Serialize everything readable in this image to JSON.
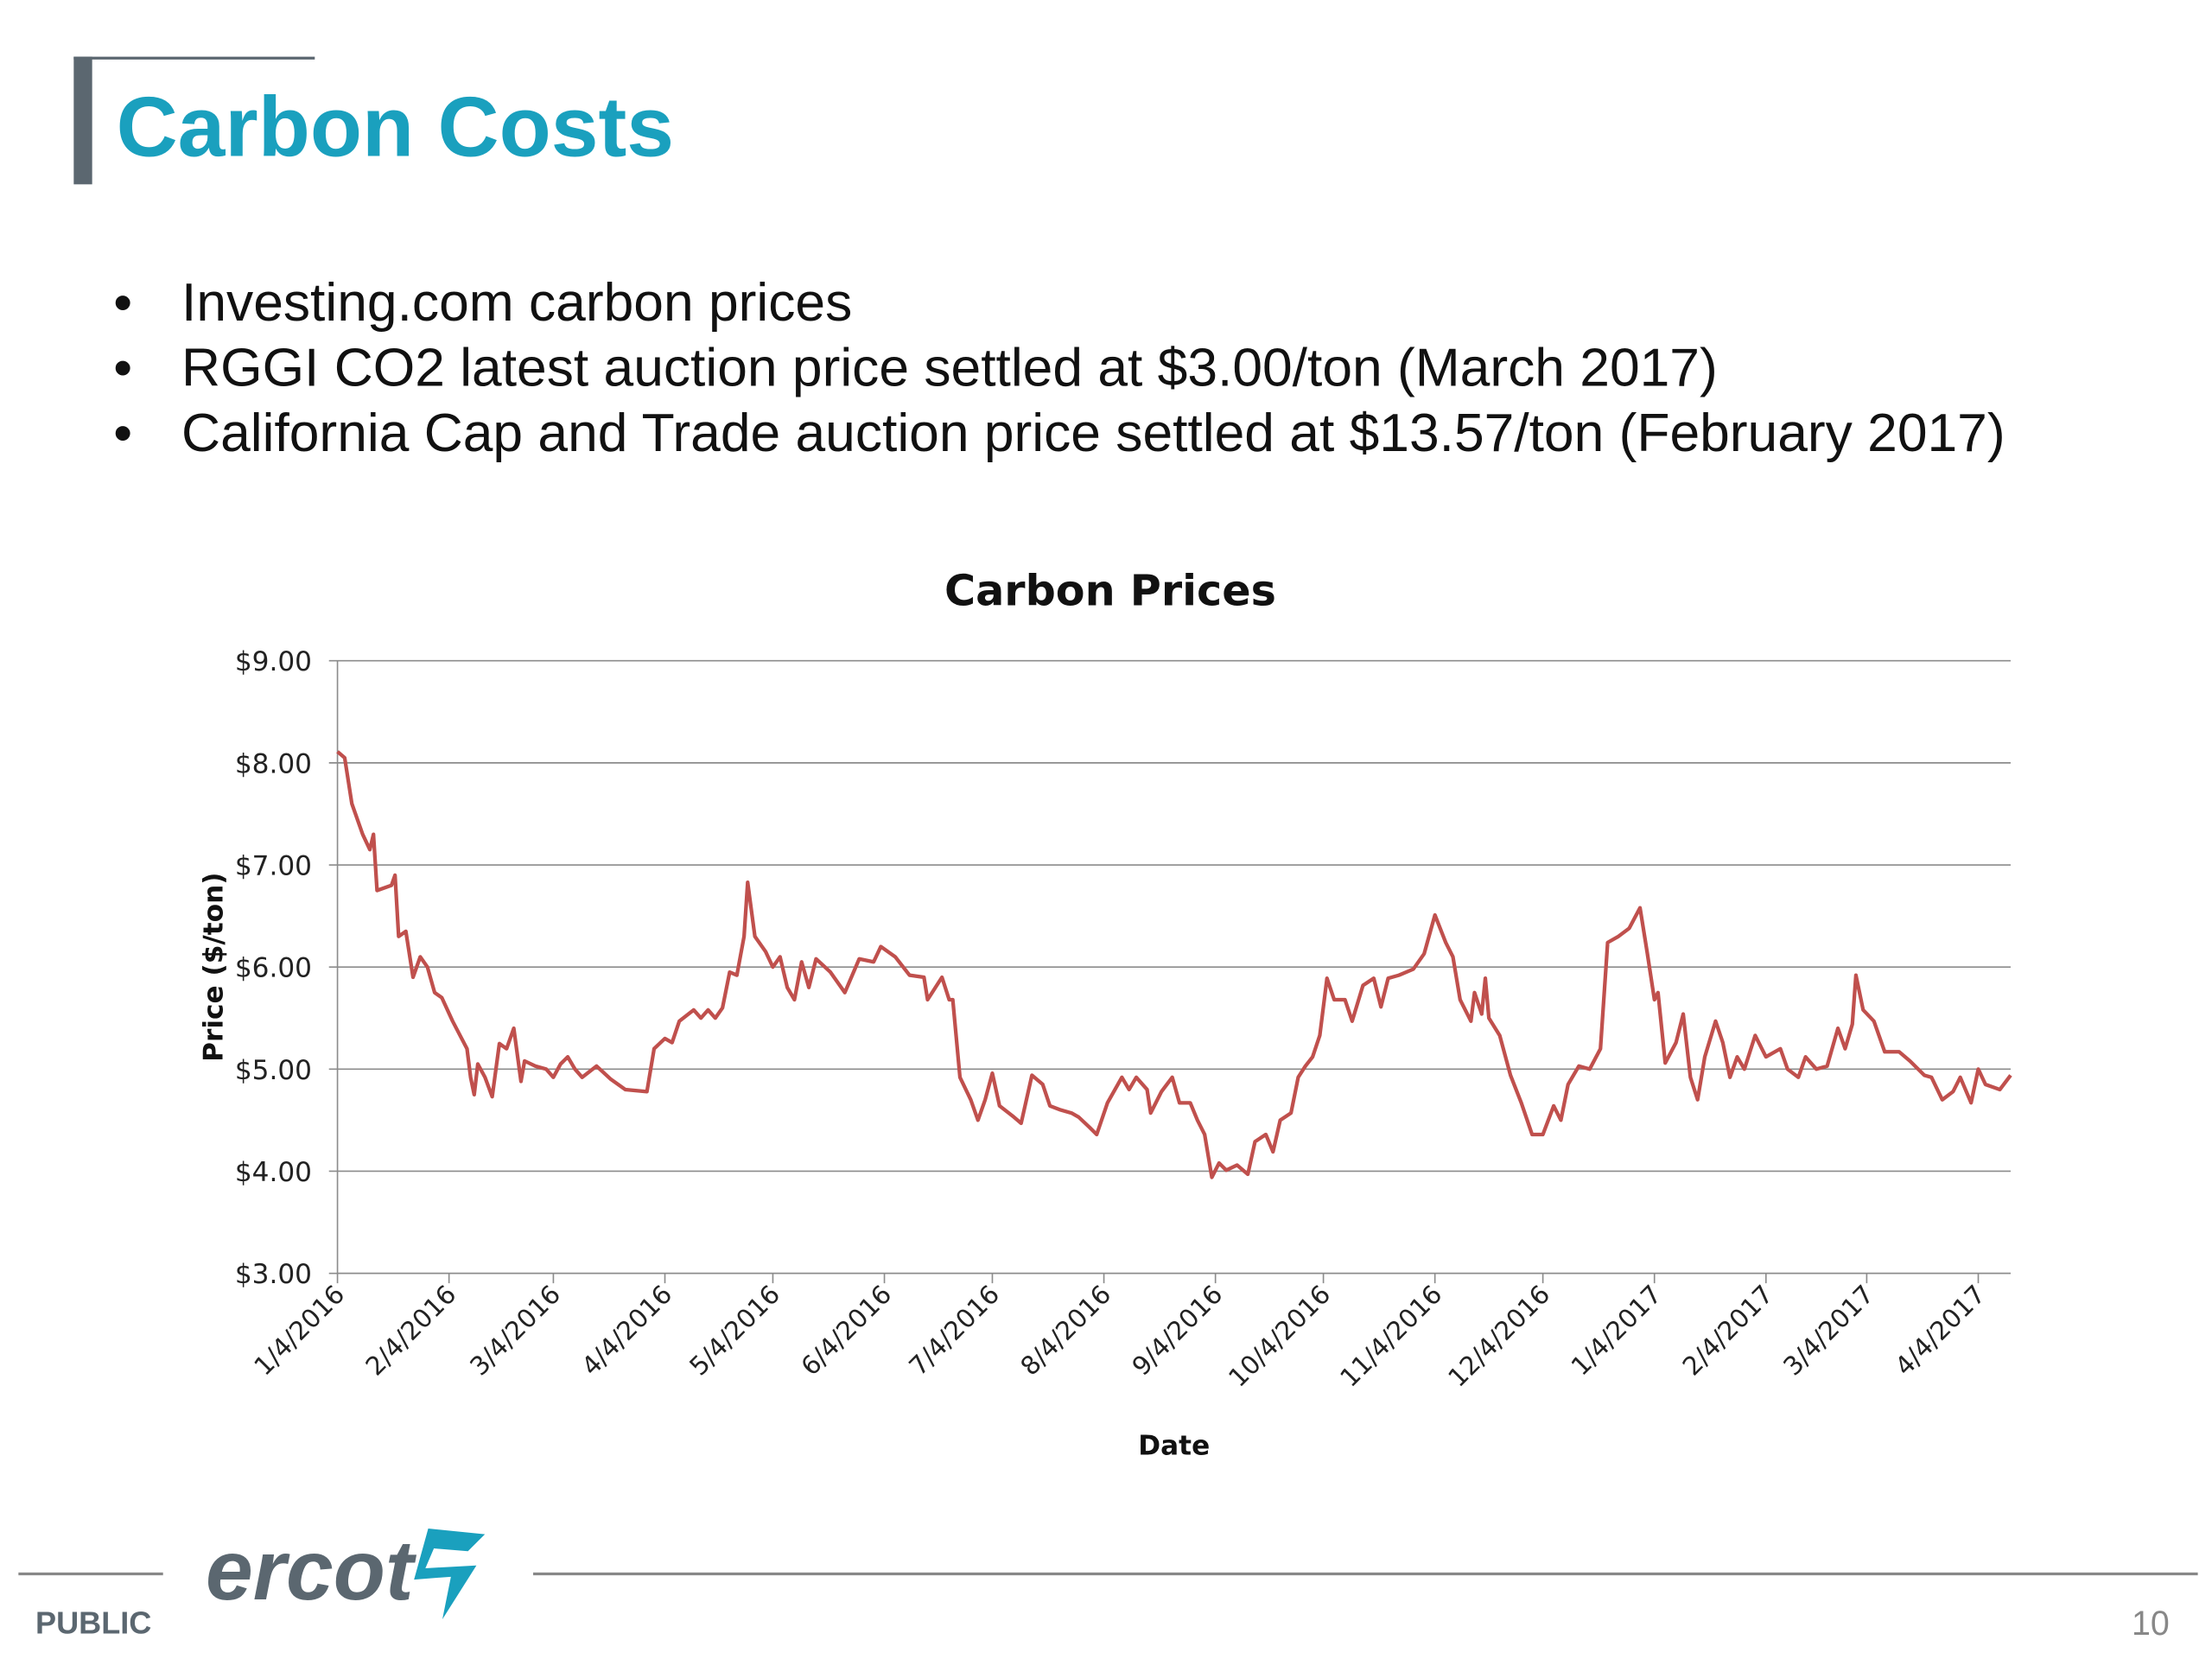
{
  "header": {
    "title": "Carbon Costs"
  },
  "bullets": [
    "Investing.com carbon prices",
    "RGGI CO2 latest auction price settled at $3.00/ton (March 2017)",
    "California Cap and Trade auction price settled at $13.57/ton (February 2017)"
  ],
  "chart_data": {
    "type": "line",
    "title": "Carbon Prices",
    "x_label": "Date",
    "y_label": "Price ($/ton)",
    "color": "#c0504d",
    "grid": true,
    "x": [
      "1/4/2016",
      "1/6/2016",
      "1/8/2016",
      "1/11/2016",
      "1/13/2016",
      "1/14/2016",
      "1/15/2016",
      "1/19/2016",
      "1/20/2016",
      "1/21/2016",
      "1/23/2016",
      "1/25/2016",
      "1/27/2016",
      "1/29/2016",
      "1/31/2016",
      "2/2/2016",
      "2/5/2016",
      "2/9/2016",
      "2/10/2016",
      "2/11/2016",
      "2/12/2016",
      "2/14/2016",
      "2/16/2016",
      "2/18/2016",
      "2/20/2016",
      "2/22/2016",
      "2/24/2016",
      "2/25/2016",
      "2/28/2016",
      "3/2/2016",
      "3/4/2016",
      "3/6/2016",
      "3/8/2016",
      "3/10/2016",
      "3/12/2016",
      "3/16/2016",
      "3/20/2016",
      "3/24/2016",
      "3/30/2016",
      "4/1/2016",
      "4/4/2016",
      "4/6/2016",
      "4/8/2016",
      "4/12/2016",
      "4/14/2016",
      "4/16/2016",
      "4/18/2016",
      "4/20/2016",
      "4/22/2016",
      "4/24/2016",
      "4/26/2016",
      "4/27/2016",
      "4/29/2016",
      "5/2/2016",
      "5/4/2016",
      "5/6/2016",
      "5/8/2016",
      "5/10/2016",
      "5/12/2016",
      "5/14/2016",
      "5/16/2016",
      "5/20/2016",
      "5/24/2016",
      "5/28/2016",
      "6/1/2016",
      "6/3/2016",
      "6/7/2016",
      "6/11/2016",
      "6/15/2016",
      "6/16/2016",
      "6/20/2016",
      "6/22/2016",
      "6/23/2016",
      "6/25/2016",
      "6/28/2016",
      "6/30/2016",
      "7/2/2016",
      "7/4/2016",
      "7/6/2016",
      "7/10/2016",
      "7/12/2016",
      "7/15/2016",
      "7/18/2016",
      "7/20/2016",
      "7/23/2016",
      "7/26/2016",
      "7/28/2016",
      "7/31/2016",
      "8/2/2016",
      "8/5/2016",
      "8/9/2016",
      "8/11/2016",
      "8/13/2016",
      "8/16/2016",
      "8/17/2016",
      "8/20/2016",
      "8/23/2016",
      "8/25/2016",
      "8/28/2016",
      "8/30/2016",
      "9/1/2016",
      "9/3/2016",
      "9/5/2016",
      "9/7/2016",
      "9/10/2016",
      "9/13/2016",
      "9/15/2016",
      "9/18/2016",
      "9/20/2016",
      "9/22/2016",
      "9/25/2016",
      "9/27/2016",
      "9/29/2016",
      "10/1/2016",
      "10/3/2016",
      "10/5/2016",
      "10/7/2016",
      "10/10/2016",
      "10/12/2016",
      "10/15/2016",
      "10/18/2016",
      "10/20/2016",
      "10/22/2016",
      "10/25/2016",
      "10/29/2016",
      "11/1/2016",
      "11/4/2016",
      "11/7/2016",
      "11/9/2016",
      "11/11/2016",
      "11/14/2016",
      "11/15/2016",
      "11/17/2016",
      "11/18/2016",
      "11/19/2016",
      "11/22/2016",
      "11/25/2016",
      "11/28/2016",
      "12/1/2016",
      "12/4/2016",
      "12/7/2016",
      "12/9/2016",
      "12/11/2016",
      "12/14/2016",
      "12/17/2016",
      "12/20/2016",
      "12/22/2016",
      "12/25/2016",
      "12/28/2016",
      "12/31/2016",
      "1/2/2017",
      "1/4/2017",
      "1/5/2017",
      "1/7/2017",
      "1/10/2017",
      "1/12/2017",
      "1/14/2017",
      "1/16/2017",
      "1/18/2017",
      "1/21/2017",
      "1/23/2017",
      "1/25/2017",
      "1/27/2017",
      "1/29/2017",
      "2/1/2017",
      "2/4/2017",
      "2/8/2017",
      "2/10/2017",
      "2/13/2017",
      "2/15/2017",
      "2/18/2017",
      "2/21/2017",
      "2/24/2017",
      "2/26/2017",
      "2/28/2017",
      "3/1/2017",
      "3/3/2017",
      "3/6/2017",
      "3/9/2017",
      "3/13/2017",
      "3/16/2017",
      "3/20/2017",
      "3/22/2017",
      "3/25/2017",
      "3/28/2017",
      "3/30/2017",
      "4/2/2017",
      "4/4/2017",
      "4/6/2017",
      "4/10/2017",
      "4/13/2017"
    ],
    "values": [
      8.11,
      8.05,
      7.6,
      7.3,
      7.15,
      7.3,
      6.75,
      6.8,
      6.9,
      6.3,
      6.35,
      5.9,
      6.1,
      6.0,
      5.75,
      5.7,
      5.47,
      5.2,
      4.92,
      4.75,
      5.05,
      4.92,
      4.73,
      5.25,
      5.2,
      5.4,
      4.88,
      5.08,
      5.03,
      5.0,
      4.92,
      5.05,
      5.12,
      5.0,
      4.92,
      5.03,
      4.9,
      4.8,
      4.78,
      5.2,
      5.3,
      5.26,
      5.47,
      5.58,
      5.5,
      5.58,
      5.5,
      5.6,
      5.95,
      5.92,
      6.3,
      6.83,
      6.3,
      6.15,
      6.0,
      6.1,
      5.8,
      5.68,
      6.05,
      5.8,
      6.08,
      5.95,
      5.75,
      6.08,
      6.05,
      6.2,
      6.1,
      5.92,
      5.9,
      5.68,
      5.9,
      5.68,
      5.68,
      4.92,
      4.7,
      4.5,
      4.7,
      4.96,
      4.64,
      4.53,
      4.47,
      4.94,
      4.85,
      4.64,
      4.6,
      4.57,
      4.53,
      4.43,
      4.36,
      4.67,
      4.92,
      4.8,
      4.92,
      4.8,
      4.57,
      4.78,
      4.92,
      4.67,
      4.67,
      4.5,
      4.36,
      3.94,
      4.08,
      4.01,
      4.06,
      3.97,
      4.29,
      4.36,
      4.19,
      4.5,
      4.57,
      4.92,
      5.03,
      5.12,
      5.33,
      5.89,
      5.68,
      5.68,
      5.47,
      5.82,
      5.89,
      5.61,
      5.89,
      5.92,
      5.98,
      6.13,
      6.51,
      6.24,
      6.1,
      5.68,
      5.47,
      5.75,
      5.54,
      5.89,
      5.5,
      5.33,
      4.94,
      4.67,
      4.36,
      4.36,
      4.64,
      4.5,
      4.85,
      5.03,
      5.0,
      5.2,
      6.24,
      6.3,
      6.38,
      6.58,
      6.14,
      5.68,
      5.75,
      5.06,
      5.26,
      5.54,
      4.92,
      4.7,
      5.12,
      5.47,
      5.26,
      4.92,
      5.12,
      5.0,
      5.33,
      5.12,
      5.2,
      5.0,
      4.92,
      5.12,
      5.0,
      5.03,
      5.4,
      5.2,
      5.44,
      5.92,
      5.58,
      5.47,
      5.17,
      5.17,
      5.08,
      4.94,
      4.92,
      4.7,
      4.78,
      4.92,
      4.67,
      5.0,
      4.85,
      4.8,
      4.94
    ],
    "xlim": [
      "1/4/2016",
      "4/13/2017"
    ],
    "xticks": [
      "1/4/2016",
      "2/4/2016",
      "3/4/2016",
      "4/4/2016",
      "5/4/2016",
      "6/4/2016",
      "7/4/2016",
      "8/4/2016",
      "9/4/2016",
      "10/4/2016",
      "11/4/2016",
      "12/4/2016",
      "1/4/2017",
      "2/4/2017",
      "3/4/2017",
      "4/4/2017"
    ],
    "ylim": [
      3,
      9
    ],
    "yticks": [
      {
        "value": 3,
        "label": "$3.00"
      },
      {
        "value": 4,
        "label": "$4.00"
      },
      {
        "value": 5,
        "label": "$5.00"
      },
      {
        "value": 6,
        "label": "$6.00"
      },
      {
        "value": 7,
        "label": "$7.00"
      },
      {
        "value": 8,
        "label": "$8.00"
      },
      {
        "value": 9,
        "label": "$9.00"
      }
    ]
  },
  "footer": {
    "classification": "PUBLIC",
    "logo": "ercot",
    "page_number": "10"
  }
}
